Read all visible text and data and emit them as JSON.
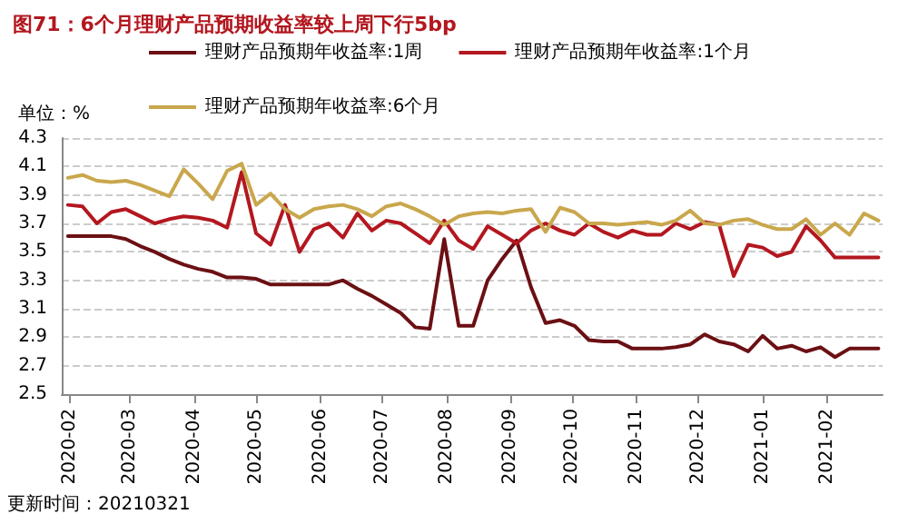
{
  "chart_data": {
    "type": "line",
    "title": "图71：6个月理财产品预期收益率较上周下行5bp",
    "ylabel": "单位：%",
    "annotations": [
      "更新时间：20210321"
    ],
    "x": [
      "2020-01-31",
      "2020-02-07",
      "2020-02-14",
      "2020-02-21",
      "2020-02-28",
      "2020-03-06",
      "2020-03-13",
      "2020-03-20",
      "2020-03-27",
      "2020-04-03",
      "2020-04-10",
      "2020-04-17",
      "2020-04-24",
      "2020-05-01",
      "2020-05-08",
      "2020-05-15",
      "2020-05-22",
      "2020-05-29",
      "2020-06-05",
      "2020-06-12",
      "2020-06-19",
      "2020-06-26",
      "2020-07-03",
      "2020-07-10",
      "2020-07-17",
      "2020-07-24",
      "2020-07-31",
      "2020-08-07",
      "2020-08-14",
      "2020-08-21",
      "2020-08-28",
      "2020-09-04",
      "2020-09-11",
      "2020-09-18",
      "2020-09-25",
      "2020-10-02",
      "2020-10-09",
      "2020-10-16",
      "2020-10-23",
      "2020-10-30",
      "2020-11-06",
      "2020-11-13",
      "2020-11-20",
      "2020-11-27",
      "2020-12-04",
      "2020-12-11",
      "2020-12-18",
      "2020-12-25",
      "2021-01-01",
      "2021-01-08",
      "2021-01-15",
      "2021-01-22",
      "2021-01-29",
      "2021-02-05",
      "2021-02-12",
      "2021-02-19",
      "2021-02-26"
    ],
    "series": [
      {
        "name": "理财产品预期年收益率:1周",
        "color": "#6b1014",
        "values": [
          3.61,
          3.61,
          3.61,
          3.61,
          3.59,
          3.54,
          3.5,
          3.45,
          3.41,
          3.38,
          3.36,
          3.32,
          3.32,
          3.31,
          3.27,
          3.27,
          3.27,
          3.27,
          3.27,
          3.3,
          3.24,
          3.19,
          3.13,
          3.07,
          2.97,
          2.96,
          3.59,
          2.98,
          2.98,
          3.3,
          3.45,
          3.58,
          3.25,
          3.0,
          3.02,
          2.98,
          2.88,
          2.87,
          2.87,
          2.82,
          2.82,
          2.82,
          2.83,
          2.85,
          2.92,
          2.87,
          2.85,
          2.8,
          2.91,
          2.82,
          2.84,
          2.8,
          2.83,
          2.76,
          2.82,
          2.82,
          2.82
        ]
      },
      {
        "name": "理财产品预期年收益率:1个月",
        "color": "#b3171f",
        "values": [
          3.83,
          3.82,
          3.7,
          3.78,
          3.8,
          3.75,
          3.7,
          3.73,
          3.75,
          3.74,
          3.72,
          3.67,
          4.06,
          3.63,
          3.55,
          3.83,
          3.5,
          3.66,
          3.7,
          3.6,
          3.77,
          3.65,
          3.72,
          3.7,
          3.63,
          3.56,
          3.72,
          3.58,
          3.52,
          3.68,
          3.62,
          3.56,
          3.65,
          3.7,
          3.65,
          3.62,
          3.7,
          3.64,
          3.6,
          3.65,
          3.62,
          3.62,
          3.7,
          3.66,
          3.71,
          3.69,
          3.33,
          3.55,
          3.53,
          3.47,
          3.5,
          3.68,
          3.58,
          3.46,
          3.46,
          3.46,
          3.46
        ]
      },
      {
        "name": "理财产品预期年收益率:6个月",
        "color": "#c9a74c",
        "values": [
          4.02,
          4.04,
          4.0,
          3.99,
          4.0,
          3.97,
          3.93,
          3.89,
          4.08,
          3.98,
          3.87,
          4.07,
          4.12,
          3.83,
          3.91,
          3.8,
          3.74,
          3.8,
          3.82,
          3.83,
          3.8,
          3.75,
          3.82,
          3.84,
          3.8,
          3.75,
          3.69,
          3.75,
          3.77,
          3.78,
          3.77,
          3.79,
          3.8,
          3.64,
          3.81,
          3.78,
          3.7,
          3.7,
          3.69,
          3.7,
          3.71,
          3.69,
          3.72,
          3.79,
          3.7,
          3.69,
          3.72,
          3.73,
          3.69,
          3.66,
          3.66,
          3.73,
          3.62,
          3.7,
          3.62,
          3.77,
          3.72
        ]
      }
    ],
    "xlim": [
      "2020-01-28",
      "2021-02-28"
    ],
    "xticks": [
      "2020-02",
      "2020-03",
      "2020-04",
      "2020-05",
      "2020-06",
      "2020-07",
      "2020-08",
      "2020-09",
      "2020-10",
      "2020-11",
      "2020-12",
      "2021-01",
      "2021-02"
    ],
    "ylim": [
      2.5,
      4.3
    ],
    "yticks": [
      2.5,
      2.7,
      2.9,
      3.1,
      3.3,
      3.5,
      3.7,
      3.9,
      4.1,
      4.3
    ],
    "grid": "y",
    "legend": "top",
    "marker": "none",
    "line_style": "solid"
  }
}
